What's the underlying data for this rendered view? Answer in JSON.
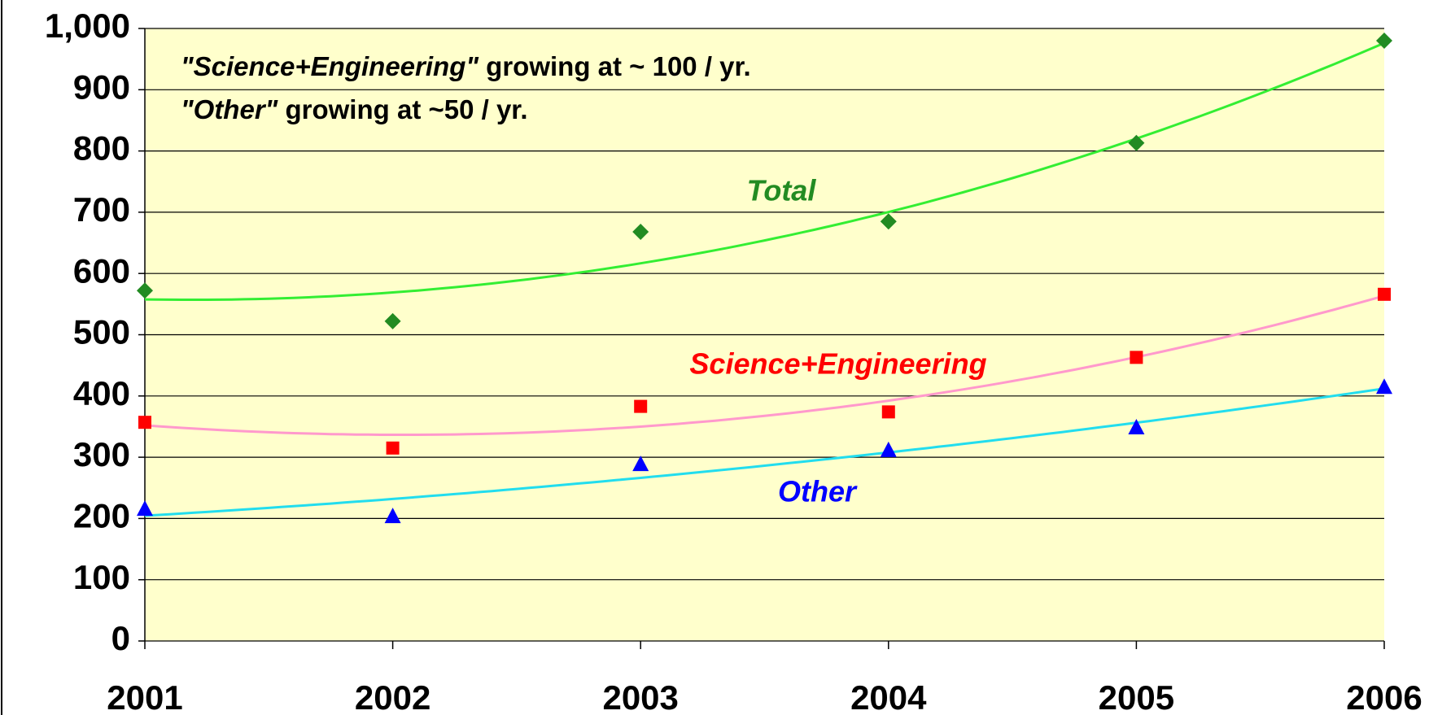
{
  "chart_data": {
    "type": "line",
    "categories": [
      "2001",
      "2002",
      "2003",
      "2004",
      "2005",
      "2006"
    ],
    "series": [
      {
        "name": "Total",
        "color": "#228b22",
        "trendline_color": "#33ee33",
        "marker": "diamond",
        "values": [
          572,
          522,
          668,
          685,
          813,
          980
        ]
      },
      {
        "name": "Science+Engineering",
        "color": "#ff0000",
        "trendline_color": "#ff99cc",
        "marker": "square",
        "values": [
          357,
          315,
          383,
          374,
          463,
          566
        ]
      },
      {
        "name": "Other",
        "color": "#0000ff",
        "trendline_color": "#22ddee",
        "marker": "triangle",
        "values": [
          215,
          203,
          288,
          311,
          348,
          414
        ]
      }
    ],
    "annotations": [
      [
        "\"Science+Engineering\"",
        " growing at ~ 100 / yr."
      ],
      [
        "\"Other\"",
        " growing at ~50 / yr."
      ]
    ],
    "ylim": [
      0,
      1000
    ],
    "yticks": [
      0,
      100,
      200,
      300,
      400,
      500,
      600,
      700,
      800,
      900,
      {
        "value": 1000,
        "label": "1,000"
      }
    ],
    "grid": true,
    "trendline": "polynomial",
    "plot_background": "#ffffcc"
  }
}
